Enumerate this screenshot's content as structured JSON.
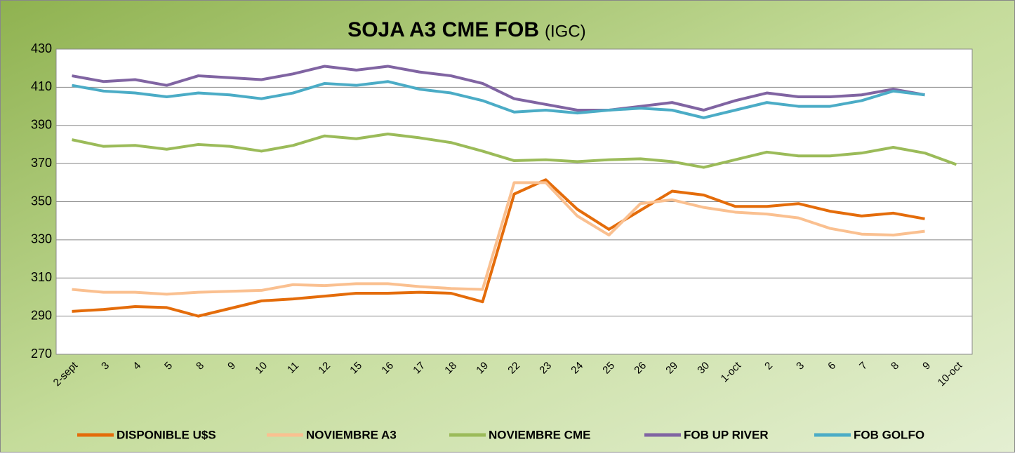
{
  "chart_data": {
    "type": "line",
    "title": "SOJA A3 CME FOB",
    "title_suffix": "(IGC)",
    "categories": [
      "2-sept",
      "3",
      "4",
      "5",
      "8",
      "9",
      "10",
      "11",
      "12",
      "15",
      "16",
      "17",
      "18",
      "19",
      "22",
      "23",
      "24",
      "25",
      "26",
      "29",
      "30",
      "1-oct",
      "2",
      "3",
      "6",
      "7",
      "8",
      "9",
      "10-oct"
    ],
    "series": [
      {
        "name": "DISPONIBLE U$S",
        "color": "#e46c0a",
        "values": [
          292.5,
          293.5,
          295,
          294.5,
          290,
          294,
          298,
          299,
          300.5,
          302,
          302,
          302.5,
          302,
          297.5,
          354,
          361.5,
          346,
          335.5,
          345.5,
          355.5,
          353.5,
          347.5,
          347.5,
          349,
          345,
          342.5,
          344,
          341,
          null
        ]
      },
      {
        "name": "NOVIEMBRE A3",
        "color": "#fac090",
        "values": [
          304,
          302.5,
          302.5,
          301.5,
          302.5,
          303,
          303.5,
          306.5,
          306,
          307,
          307,
          305.5,
          304.5,
          304,
          360,
          360,
          342.5,
          332.5,
          349,
          351,
          347,
          344.5,
          343.5,
          341.5,
          336,
          333,
          332.5,
          334.5,
          null
        ]
      },
      {
        "name": "NOVIEMBRE CME",
        "color": "#9bbb59",
        "values": [
          382.5,
          379,
          379.5,
          377.5,
          380,
          379,
          376.5,
          379.5,
          384.5,
          383,
          385.5,
          383.5,
          381,
          376.5,
          371.5,
          372,
          371,
          372,
          372.5,
          371,
          368,
          372,
          376,
          374,
          374,
          375.5,
          378.5,
          375.5,
          369.5
        ]
      },
      {
        "name": "FOB UP RIVER",
        "color": "#8064a2",
        "values": [
          416,
          413,
          414,
          411,
          416,
          415,
          414,
          417,
          421,
          419,
          421,
          418,
          416,
          412,
          404,
          401,
          398,
          398,
          400,
          402,
          398,
          403,
          407,
          405,
          405,
          406,
          409,
          406,
          null
        ]
      },
      {
        "name": "FOB GOLFO",
        "color": "#4bacc6",
        "values": [
          411,
          408,
          407,
          405,
          407,
          406,
          404,
          407,
          412,
          411,
          413,
          409,
          407,
          403,
          397,
          398,
          396.5,
          398,
          399,
          398,
          394,
          398,
          402,
          400,
          400,
          403,
          408,
          406,
          null
        ]
      }
    ],
    "ylim": [
      270,
      430
    ],
    "yticks": [
      270,
      290,
      310,
      330,
      350,
      370,
      390,
      410,
      430
    ],
    "grid": true,
    "legend": "bottom"
  }
}
